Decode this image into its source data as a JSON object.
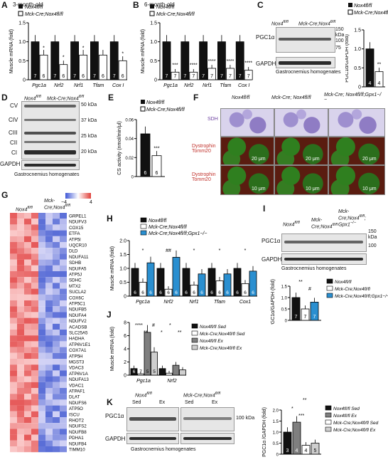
{
  "labels": {
    "geno_ctrl": "Nox4",
    "geno_ko": "Mck-Cre;Nox4",
    "sup": "fl/fl",
    "gpx": "Gpx1",
    "gpx_sup": "−/−"
  },
  "panelA": {
    "letter": "A",
    "title": "3-month-old",
    "ylabel": "Muscle mRNA (fold)",
    "chart_data": {
      "type": "bar",
      "categories": [
        "Pgc1a",
        "Nrf2",
        "Nrf1",
        "Tfam",
        "Cox I"
      ],
      "series": [
        {
          "name": "Nox4fl/fl",
          "values": [
            1.0,
            1.0,
            1.0,
            1.0,
            1.0
          ]
        },
        {
          "name": "Mck-Cre;Nox4fl/fl",
          "values": [
            0.65,
            0.4,
            0.65,
            0.65,
            0.5
          ]
        }
      ],
      "ylim": [
        0,
        1.5
      ],
      "yticks": [
        "0",
        "0.5",
        "1.0",
        "1.5"
      ],
      "n": [
        "7",
        "6"
      ],
      "stars": [
        "*",
        "*",
        "*",
        "",
        "*"
      ]
    }
  },
  "panelB": {
    "letter": "B",
    "title": "6-month-old",
    "ylabel": "Muscle mRNA (fold)",
    "chart_data": {
      "type": "bar",
      "categories": [
        "Pgc1a",
        "Nrf2",
        "Nrf1",
        "Tfam",
        "Cox I"
      ],
      "series": [
        {
          "name": "Nox4fl/fl",
          "values": [
            1.0,
            1.0,
            1.0,
            1.0,
            1.0
          ]
        },
        {
          "name": "Mck-Cre;Nox4fl/fl",
          "values": [
            0.2,
            0.2,
            0.3,
            0.3,
            0.25
          ]
        }
      ],
      "ylim": [
        0,
        1.5
      ],
      "yticks": [
        "0",
        "0.5",
        "1.0",
        "1.5"
      ],
      "n": [
        "7",
        "7"
      ],
      "stars": [
        "***",
        "****",
        "****",
        "****",
        "****"
      ]
    }
  },
  "panelC": {
    "letter": "C",
    "blot_label": "PGC1α",
    "loading": "GAPDH",
    "caption": "Gastrocnemius homogenates",
    "kda": [
      "150",
      "kDa",
      "100",
      "75"
    ],
    "ylabel": "PGC1α/GAPDH (fold)",
    "chart_data": {
      "type": "bar",
      "categories": [
        "Nox4fl/fl",
        "Mck-Cre;Nox4fl/fl"
      ],
      "values": [
        1.0,
        0.4
      ],
      "ylim": [
        0,
        1.5
      ],
      "yticks": [
        "0",
        "0.5",
        "1.0",
        "1.5"
      ],
      "n": [
        "4",
        "4"
      ],
      "stars": [
        "",
        "**"
      ]
    }
  },
  "panelD": {
    "letter": "D",
    "rows": [
      "CV",
      "CIV",
      "CIII",
      "CII",
      "CI",
      "GAPDH"
    ],
    "kda": [
      "50 kDa",
      "37 kDa",
      "25 kDa",
      "20 kDa"
    ],
    "caption": "Gastrocnemius homogenates"
  },
  "panelE": {
    "letter": "E",
    "ylabel": "CS activity (nmol/min/μl)",
    "chart_data": {
      "type": "bar",
      "categories": [
        "Nox4fl/fl",
        "Mck-Cre;Nox4fl/fl"
      ],
      "values": [
        0.045,
        0.022
      ],
      "ylim": [
        0,
        0.06
      ],
      "yticks": [
        "0",
        "0.02",
        "0.04",
        "0.06"
      ],
      "n": [
        "6",
        "6"
      ],
      "stars": [
        "",
        "***"
      ]
    }
  },
  "panelF": {
    "letter": "F",
    "cols": [
      "Nox4fl/fl",
      "Mck-Cre; Nox4fl/fl",
      "Mck-Cre; Nox4fl/fl;Gpx1−/−"
    ],
    "rows": [
      "SDH",
      "Dystrophin Tomm20",
      "Dystrophin Tomm20"
    ],
    "scale": [
      "20 μm",
      "20 μm",
      "20 μm",
      "10 μm",
      "10 μm",
      "10 μm"
    ]
  },
  "panelG": {
    "letter": "G",
    "scale_min": "−4",
    "scale_max": "4",
    "genes": [
      "GRPEL1",
      "NDUFV3",
      "COX15",
      "ETFA",
      "ATP5I",
      "UQCR10",
      "DLD",
      "NDUFA11",
      "SDHB",
      "NDUFA5",
      "ATP5J",
      "SDHC",
      "MTX2",
      "SUCLA2",
      "COX6C",
      "ATP5C1",
      "NDUFB5",
      "NDUFA4",
      "NDUFV2",
      "ACADSB",
      "SLC25A5",
      "HADHA",
      "ATP6V1E1",
      "COX7A1",
      "ATP5H",
      "MGST3",
      "VDAC3",
      "ATP6V1A",
      "NDUFA13",
      "VDAC1",
      "ATPAF1",
      "DLAT",
      "NDUFS6",
      "ATP5O",
      "ISCU",
      "RHOT2",
      "NDUFS2",
      "NDUFB8",
      "PDHA1",
      "NDUFB4",
      "TIMM10"
    ]
  },
  "panelH": {
    "letter": "H",
    "ylabel": "Muscle mRNA (fold)",
    "chart_data": {
      "type": "bar",
      "categories": [
        "Pgc1a",
        "Nrf2",
        "Nrf1",
        "Tfam",
        "Cox1"
      ],
      "series": [
        {
          "name": "Nox4fl/fl",
          "values": [
            1.0,
            1.0,
            1.0,
            1.0,
            1.0
          ]
        },
        {
          "name": "Mck-Cre;Nox4fl/fl",
          "values": [
            0.5,
            0.25,
            0.4,
            0.55,
            0.45
          ]
        },
        {
          "name": "Mck-Cre;Nox4fl/fl;Gpx1−/−",
          "values": [
            1.2,
            1.4,
            0.8,
            0.8,
            0.9
          ]
        }
      ],
      "ylim": [
        0,
        2.0
      ],
      "yticks": [
        "0",
        "0.5",
        "1.0",
        "1.5",
        "2.0"
      ],
      "n": "6",
      "stars": [
        "*",
        "##",
        "*",
        "*",
        "*"
      ]
    }
  },
  "panelI": {
    "letter": "I",
    "blot_label": "PGC1α",
    "loading": "GAPDH",
    "caption": "Gastrocnemius homogenates",
    "kda": [
      "150",
      "kDa",
      "100"
    ],
    "ylabel": "PGC1α/GAPDH (fold)",
    "chart_data": {
      "type": "bar",
      "categories": [
        "Nox4fl/fl",
        "Mck-Cre;Nox4fl/fl",
        "Mck-Cre;Nox4fl/fl;Gpx1−/−"
      ],
      "values": [
        1.0,
        0.5,
        0.8
      ],
      "ylim": [
        0,
        1.5
      ],
      "yticks": [
        "0",
        "0.5",
        "1.0",
        "1.5"
      ],
      "n": [
        "7",
        "7",
        "7"
      ],
      "stars": [
        "**",
        "#"
      ]
    }
  },
  "panelJ": {
    "letter": "J",
    "ylabel": "Muscle mRNA (fold)",
    "chart_data": {
      "type": "bar",
      "categories": [
        "Pgc1a",
        "Nrf2"
      ],
      "series": [
        {
          "name": "Nox4fl/fl Sed",
          "values": [
            1.0,
            1.0
          ]
        },
        {
          "name": "Mck-Cre;Nox4fl/fl Sed",
          "values": [
            0.2,
            0.3
          ]
        },
        {
          "name": "Nox4fl/fl Ex",
          "values": [
            6.5,
            1.5
          ]
        },
        {
          "name": "Mck-Cre;Nox4fl/fl Ex",
          "values": [
            3.5,
            0.8
          ]
        }
      ],
      "ylim": [
        0,
        8
      ],
      "yticks": [
        "0",
        "2",
        "4",
        "6",
        "8"
      ],
      "n": [
        "6",
        "7",
        "5",
        "5"
      ],
      "stars": [
        "****",
        "**",
        "#",
        "*",
        "*",
        "**"
      ]
    }
  },
  "panelK": {
    "letter": "K",
    "sed": "Sed",
    "ex": "Ex",
    "blot_label": "PGC1α",
    "loading": "GAPDH",
    "caption": "Gastrocnemius homogenates",
    "kda": "100",
    "ylabel": "PGC1α /GAPDH (fold)",
    "chart_data": {
      "type": "bar",
      "categories": [
        "Nox4fl/fl Sed",
        "Nox4fl/fl Ex",
        "Mck-Cre;Nox4fl/fl Sed",
        "Mck-Cre;Nox4fl/fl Ex"
      ],
      "values": [
        1.0,
        1.45,
        0.4,
        0.5
      ],
      "ylim": [
        0,
        2.0
      ],
      "yticks": [
        "0",
        "0.5",
        "1.0",
        "1.5",
        "2.0"
      ],
      "n": [
        "3",
        "4",
        "4",
        "5"
      ],
      "stars": [
        "*",
        "**",
        "***"
      ]
    }
  },
  "colors": {
    "black": "#111111",
    "white": "#ffffff",
    "blue": "#2a8fd0",
    "gray": "#7f7f7f",
    "lightgray": "#cfcfcf",
    "heat_red": "#e0413a",
    "heat_blue": "#3f57d6"
  }
}
